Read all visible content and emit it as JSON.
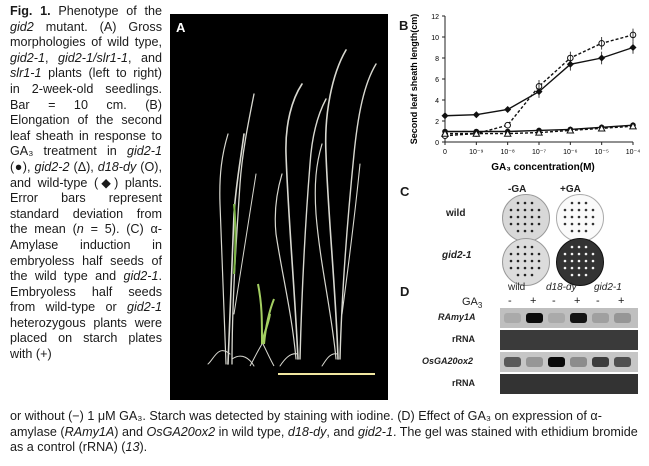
{
  "caption": {
    "fig_label": "Fig. 1.",
    "p1": " Phenotype of the ",
    "gene": "gid2",
    "p2": " mutant. (A) Gross morphologies of wild type, ",
    "g1": "gid2-1",
    "p3": ", ",
    "g2": "gid2-1/slr1-1",
    "p4": ", and ",
    "g3": "slr1-1",
    "p5": " plants (left to right) in 2-week-old seedlings. Bar = 10 cm. (B) Elongation of the second leaf sheath in response to GA₃ treatment in ",
    "g4": "gid2-1",
    "p6": " (●), ",
    "g5": "gid2-2",
    "p7": " (Δ), ",
    "g6": "d18-dy",
    "p8": " (O), and wild-type (◆) plants. Error bars represent standard deviation from the mean (",
    "n": "n",
    "p9": " = 5). (C) α-Amylase induction in embryoless half seeds of the wild type and ",
    "g7": "gid2-1",
    "p10": ". Embryoless half seeds from wild-type or ",
    "g8": "gid2-1",
    "p11": " heterozygous plants were placed on starch plates with (+)",
    "bottom1": "or without (−) 1 μM GA₃. Starch was detected by staining with iodine. (D) Effect of GA₃ on expression of α-amylase (",
    "b_g1": "RAmy1A",
    "bottom2": ") and ",
    "b_g2": "OsGA20ox2",
    "bottom3": " in wild type, ",
    "b_g3": "d18-dy",
    "bottom4": ", and ",
    "b_g4": "gid2-1",
    "bottom5": ". The gel was stained with ethidium bromide as a control (rRNA) (",
    "ref": "13",
    "bottom6": ")."
  },
  "panels": {
    "a": "A",
    "b": "B",
    "c": "C",
    "d": "D"
  },
  "chart_data": {
    "type": "line",
    "title": "",
    "ylabel": "Second leaf sheath length(cm)",
    "xlabel": "GA₃ concentration(M)",
    "ylim": [
      0,
      12
    ],
    "yticks": [
      "0",
      "2",
      "4",
      "6",
      "8",
      "10",
      "12"
    ],
    "x": [
      "0",
      "10⁻⁹",
      "10⁻⁸",
      "10⁻⁷",
      "10⁻⁶",
      "10⁻⁵",
      "10⁻⁴"
    ],
    "series": [
      {
        "marker": "diamond",
        "line": "solid",
        "values": [
          2.5,
          2.6,
          3.1,
          4.8,
          7.4,
          8.0,
          9.0
        ]
      },
      {
        "marker": "open-circle",
        "line": "dashed",
        "values": [
          0.6,
          0.8,
          1.6,
          5.3,
          8.0,
          9.4,
          10.2
        ]
      },
      {
        "marker": "filled-circle",
        "line": "solid",
        "values": [
          1.0,
          1.0,
          1.0,
          1.1,
          1.2,
          1.4,
          1.6
        ]
      },
      {
        "marker": "open-triangle",
        "line": "dashed",
        "values": [
          0.8,
          0.8,
          0.8,
          0.9,
          1.1,
          1.3,
          1.5
        ]
      }
    ]
  },
  "panel_c": {
    "col_minus": "-GA",
    "col_plus": "+GA",
    "row1": "wild",
    "row2": "gid2-1"
  },
  "panel_d": {
    "ga3": "GA",
    "ga3_sub": "3",
    "groups": [
      "wild",
      "d18-dy",
      "gid2-1"
    ],
    "signs": [
      "-",
      "+",
      "-",
      "+",
      "-",
      "+"
    ],
    "rows": [
      "RAmy1A",
      "rRNA",
      "OsGA20ox2",
      "rRNA"
    ],
    "bands": {
      "ramy": [
        0.15,
        0.95,
        0.15,
        0.9,
        0.2,
        0.25
      ],
      "osga": [
        0.55,
        0.25,
        0.95,
        0.3,
        0.7,
        0.6
      ]
    }
  }
}
